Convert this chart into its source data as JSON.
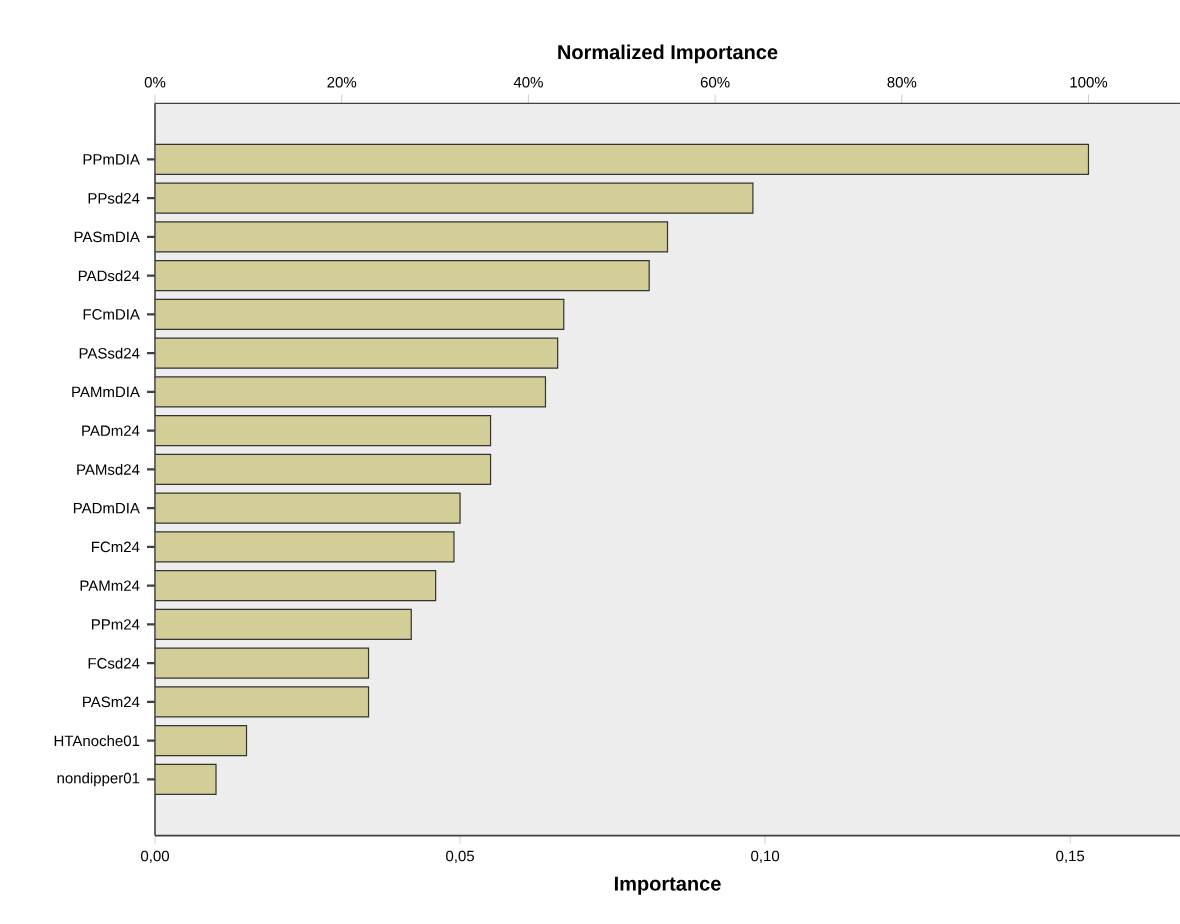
{
  "chart_data": {
    "type": "bar",
    "orientation": "horizontal",
    "xlabel": "Importance",
    "x2label": "Normalized Importance",
    "categories": [
      "PPmDIA",
      "PPsd24",
      "PASmDIA",
      "PADsd24",
      "FCmDIA",
      "PASsd24",
      "PAMmDIA",
      "PADm24",
      "PAMsd24",
      "PADmDIA",
      "FCm24",
      "PAMm24",
      "PPm24",
      "FCsd24",
      "PASm24",
      "HTAnoche01",
      "nondipper01"
    ],
    "values": [
      0.153,
      0.098,
      0.084,
      0.081,
      0.067,
      0.066,
      0.064,
      0.055,
      0.055,
      0.05,
      0.049,
      0.046,
      0.042,
      0.035,
      0.035,
      0.015,
      0.01
    ],
    "color": "#d3cd98",
    "xlim": [
      0,
      0.168
    ],
    "xticks": [
      {
        "value": 0,
        "label": "0,00"
      },
      {
        "value": 0.05,
        "label": "0,05"
      },
      {
        "value": 0.1,
        "label": "0,10"
      },
      {
        "value": 0.15,
        "label": "0,15"
      }
    ],
    "x2lim": [
      0,
      109.8
    ],
    "x2ticks": [
      {
        "value": 0,
        "label": "0%"
      },
      {
        "value": 20,
        "label": "20%"
      },
      {
        "value": 40,
        "label": "40%"
      },
      {
        "value": 60,
        "label": "60%"
      },
      {
        "value": 80,
        "label": "80%"
      },
      {
        "value": 100,
        "label": "100%"
      }
    ]
  }
}
